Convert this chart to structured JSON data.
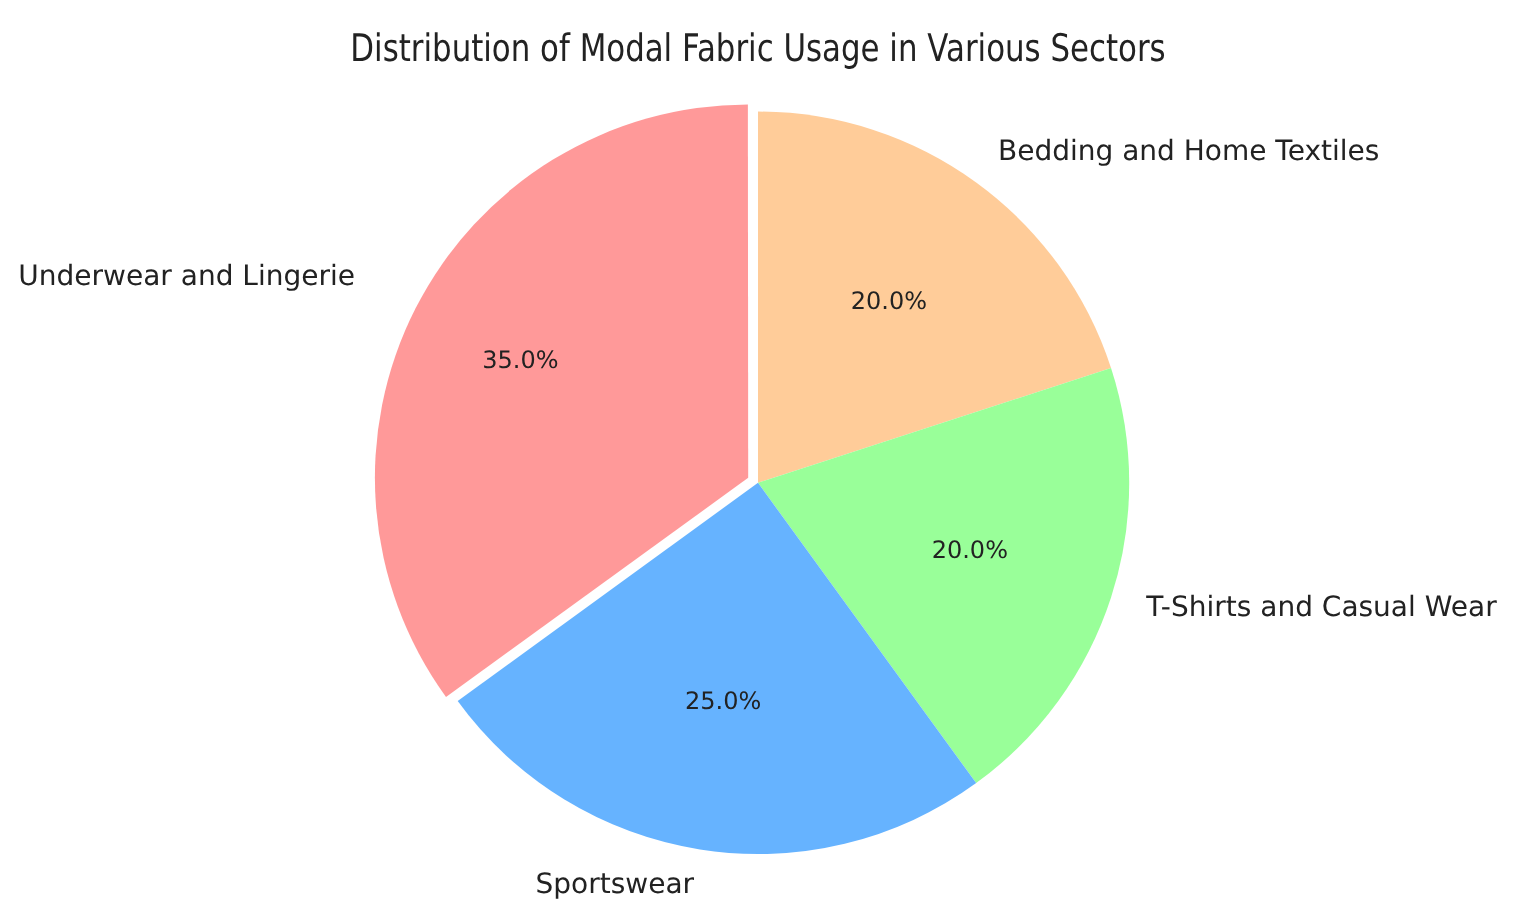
{
  "chart_data": {
    "type": "pie",
    "title": "Distribution of Modal Fabric Usage in Various Sectors",
    "categories": [
      "Underwear and Lingerie",
      "Sportswear",
      "T-Shirts and Casual Wear",
      "Bedding and Home Textiles"
    ],
    "values": [
      35,
      25,
      20,
      20
    ],
    "colors": [
      "#ff9999",
      "#66b3ff",
      "#99ff99",
      "#ffcc99"
    ],
    "value_labels": [
      "35.0%",
      "25.0%",
      "20.0%",
      "20.0%"
    ],
    "legend": false
  }
}
